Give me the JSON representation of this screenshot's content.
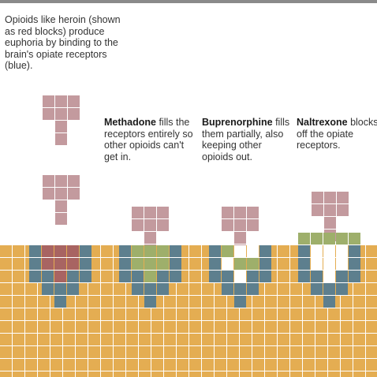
{
  "intro": "Opioids like heroin (shown as red blocks) produce euphoria by binding to the brain's opiate receptors (blue).",
  "panels": [
    {
      "name": "Methadone",
      "text": " fills the receptors entirely so other opioids can't get in."
    },
    {
      "name": "Buprenorphine",
      "text": " fills them partially, also keeping other opioids out."
    },
    {
      "name": "Naltrexone",
      "text": " blocks off the opiate receptors."
    }
  ],
  "colors": {
    "brain_tissue": "#e4ad52",
    "receptor": "#5d7f8e",
    "opioid": "#c39a9e",
    "opioid_bound": "#a86462",
    "methadone": "#9eaf6b",
    "naltrexone": "#9eaf6b",
    "grid_line": "#ffffff",
    "top_rule": "#8a8a8a"
  }
}
